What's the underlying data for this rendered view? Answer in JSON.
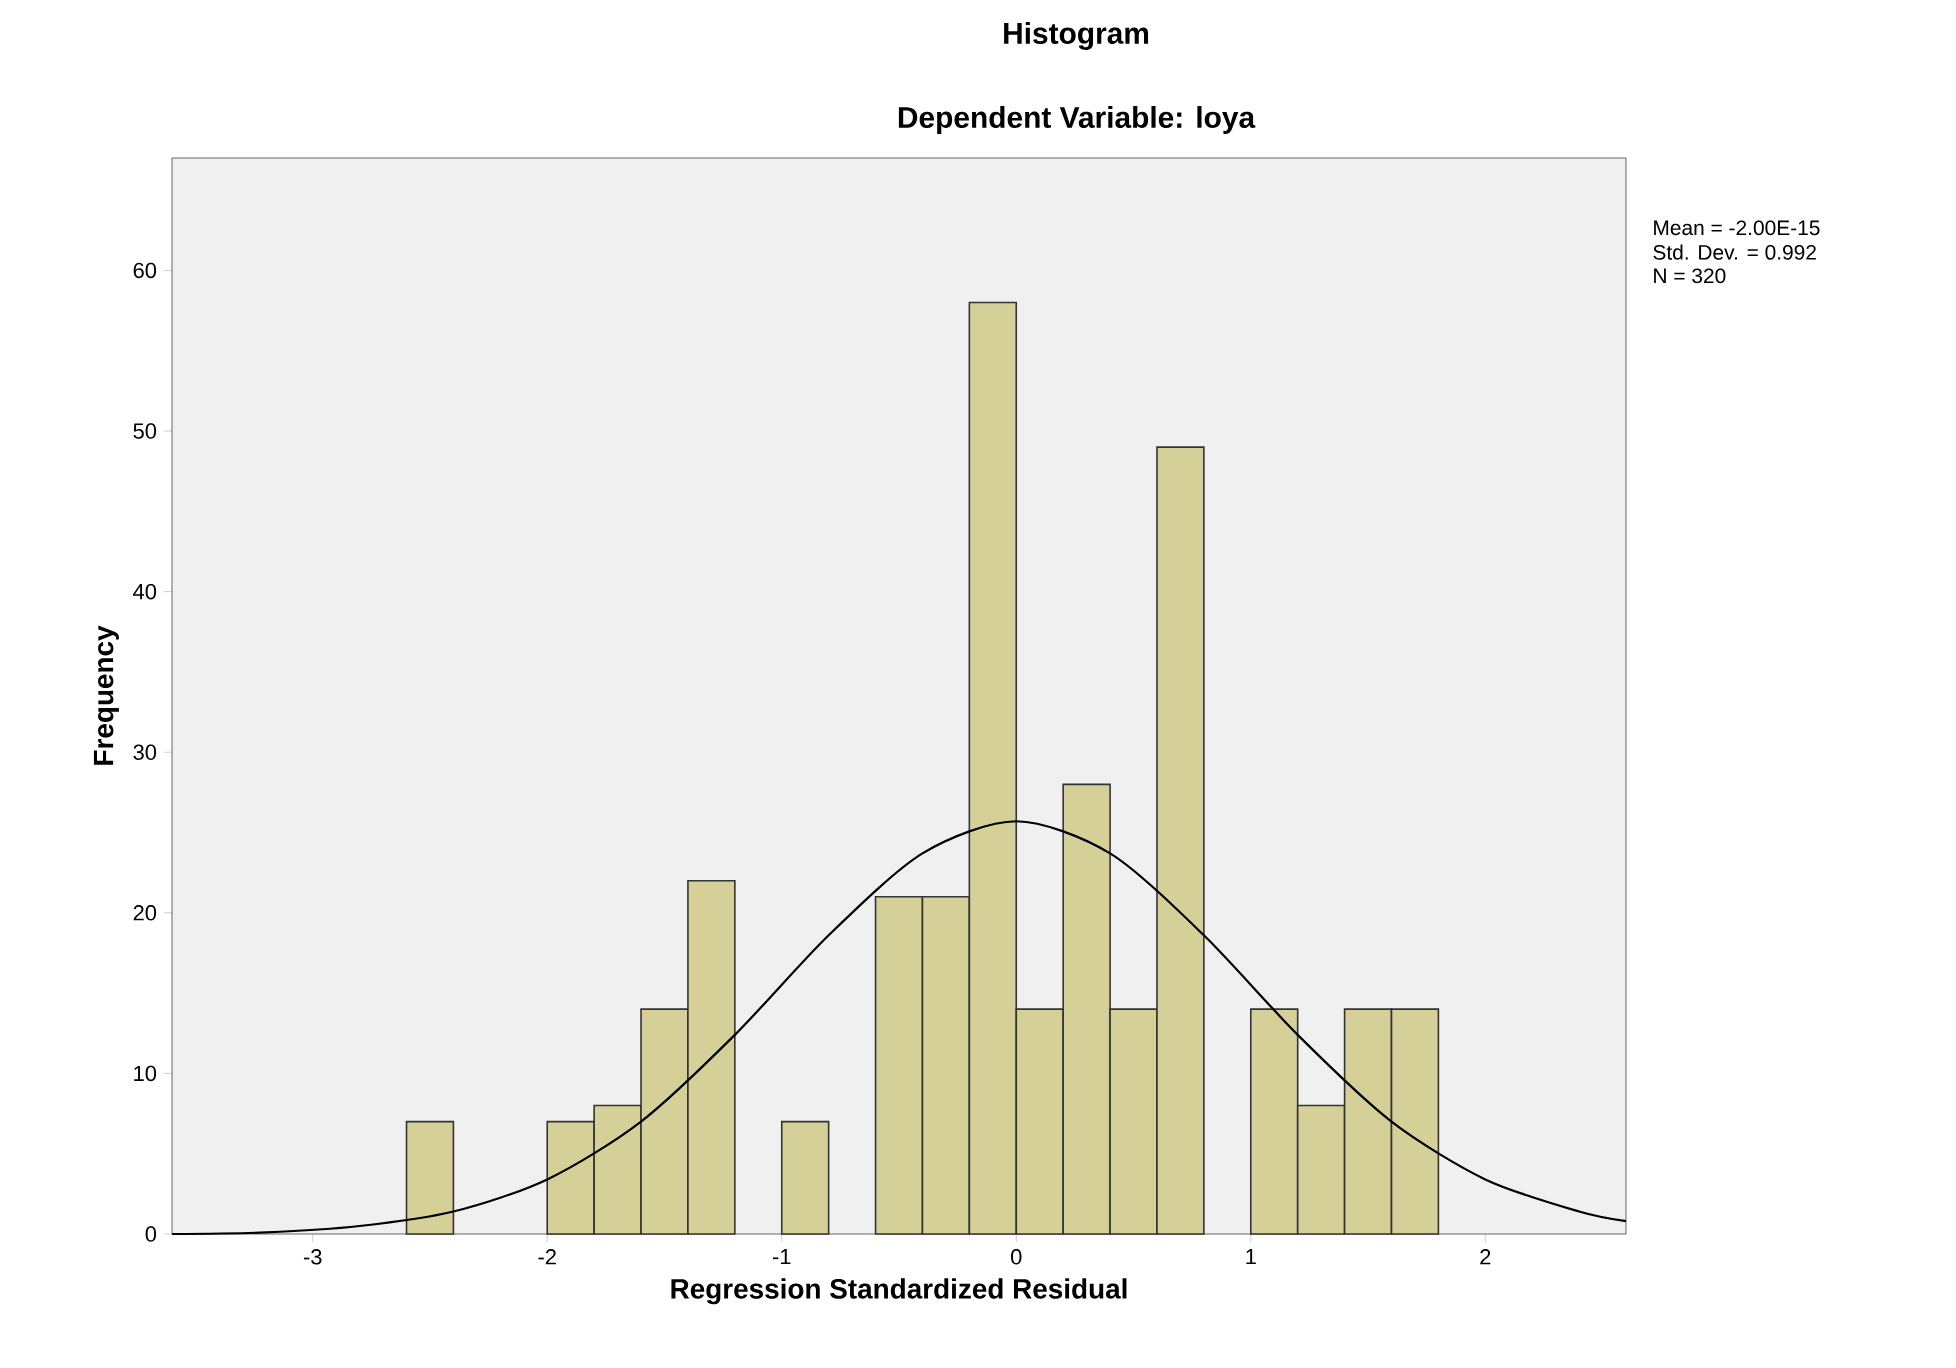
{
  "chart_data": {
    "type": "histogram",
    "title": "Histogram",
    "subtitle": "Dependent Variable: loya",
    "xlabel": "Regression Standardized Residual",
    "ylabel": "Frequency",
    "bins": [
      -2.6,
      -2.4,
      -2.2,
      -2.0,
      -1.8,
      -1.6,
      -1.4,
      -1.2,
      -1.0,
      -0.8,
      -0.6,
      -0.4,
      -0.2,
      0,
      0.2,
      0.4,
      0.6,
      0.8,
      1.0,
      1.2,
      1.4,
      1.6,
      1.8
    ],
    "values": [
      7,
      0,
      0,
      7,
      8,
      14,
      22,
      0,
      7,
      0,
      21,
      21,
      58,
      14,
      28,
      14,
      49,
      0,
      14,
      8,
      14,
      14
    ],
    "color": "#d4d098",
    "series": [
      {
        "type": "line",
        "color": "#000000",
        "x": [
          -3.6,
          -3.2,
          -2.8,
          -2.4,
          -2.0,
          -1.6,
          -1.2,
          -0.8,
          -0.4,
          0,
          0.4,
          0.8,
          1.2,
          1.6,
          2.0,
          2.4,
          2.6
        ],
        "values": [
          0,
          0.1,
          0.5,
          1.4,
          3.4,
          7.0,
          12.4,
          18.6,
          23.7,
          25.7,
          23.7,
          18.6,
          12.4,
          7.0,
          3.4,
          1.4,
          0.8
        ]
      }
    ],
    "xlim": [
      -3.6,
      2.6
    ],
    "ylim": [
      0,
      67
    ],
    "xticks": [
      -3,
      -2,
      -1,
      0,
      1,
      2
    ],
    "yticks": [
      0,
      10,
      20,
      30,
      40,
      50,
      60
    ],
    "annotations": [
      "Mean = -2.00E-15",
      "Std. Dev. = 0.992",
      "N = 320"
    ]
  }
}
